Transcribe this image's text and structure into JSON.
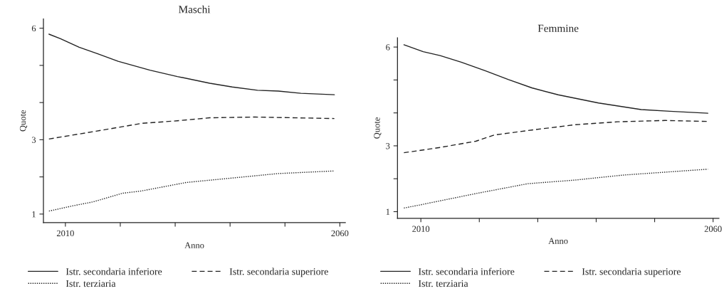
{
  "chart_data": [
    {
      "type": "line",
      "title": "Maschi",
      "xlabel": "Anno",
      "ylabel": "Quote",
      "xlim": [
        2006,
        2061
      ],
      "xticks": [
        2010,
        {
          "value": 2020,
          "label": null
        },
        {
          "value": 2030,
          "label": null
        },
        {
          "value": 2040,
          "label": null
        },
        {
          "value": 2050,
          "label": null
        },
        2060
      ],
      "ylim": [
        0.77,
        6.25
      ],
      "yticks": [
        1,
        {
          "value": 2,
          "label": null
        },
        3,
        {
          "value": 4,
          "label": null
        },
        {
          "value": 5,
          "label": null
        },
        6
      ],
      "grid": false,
      "legend": "bottom",
      "series": [
        {
          "name": "Istr. secondaria inferiore",
          "color": "#222222",
          "line_style": "solid",
          "x": [
            2007,
            2009.1,
            2012.5,
            2015.9,
            2019.6,
            2025.4,
            2030.4,
            2036.3,
            2040.4,
            2045,
            2048.8,
            2052.9,
            2059
          ],
          "values": [
            5.84,
            5.72,
            5.49,
            5.31,
            5.11,
            4.87,
            4.7,
            4.52,
            4.42,
            4.33,
            4.31,
            4.25,
            4.21
          ]
        },
        {
          "name": "Istr. secondaria superiore",
          "color": "#222222",
          "line_style": "dashed",
          "x": [
            2007,
            2015.6,
            2023.9,
            2030.4,
            2036.3,
            2044.6,
            2059
          ],
          "values": [
            3.02,
            3.23,
            3.44,
            3.51,
            3.59,
            3.61,
            3.57
          ]
        },
        {
          "name": "Istr. terziaria",
          "color": "#222222",
          "line_style": "dotted",
          "x": [
            2007,
            2011.3,
            2015.1,
            2020.4,
            2023.8,
            2032,
            2040.4,
            2048.8,
            2059
          ],
          "values": [
            1.08,
            1.22,
            1.33,
            1.56,
            1.62,
            1.85,
            1.97,
            2.09,
            2.16
          ]
        }
      ]
    },
    {
      "type": "line",
      "title": "Femmine",
      "xlabel": "Anno",
      "ylabel": "Quote",
      "xlim": [
        2006,
        2061
      ],
      "xticks": [
        2010,
        {
          "value": 2020,
          "label": null
        },
        {
          "value": 2030,
          "label": null
        },
        {
          "value": 2040,
          "label": null
        },
        {
          "value": 2050,
          "label": null
        },
        2060
      ],
      "ylim": [
        0.8,
        6.28
      ],
      "yticks": [
        1,
        {
          "value": 2,
          "label": null
        },
        3,
        {
          "value": 4,
          "label": null
        },
        {
          "value": 5,
          "label": null
        },
        6
      ],
      "grid": false,
      "legend": "bottom",
      "series": [
        {
          "name": "Istr. secondaria inferiore",
          "color": "#222222",
          "line_style": "solid",
          "x": [
            2007.1,
            2010.4,
            2013.3,
            2016.9,
            2021,
            2025,
            2029,
            2033.5,
            2040.4,
            2047.7,
            2052.6,
            2059.1
          ],
          "values": [
            6.07,
            5.86,
            5.74,
            5.54,
            5.28,
            5.01,
            4.76,
            4.55,
            4.3,
            4.1,
            4.05,
            3.99
          ]
        },
        {
          "name": "Istr. secondaria superiore",
          "color": "#222222",
          "line_style": "dashed",
          "x": [
            2007.1,
            2013.3,
            2019.4,
            2022.6,
            2029,
            2036.4,
            2043.7,
            2051.8,
            2059.1
          ],
          "values": [
            2.79,
            2.95,
            3.14,
            3.33,
            3.48,
            3.64,
            3.73,
            3.77,
            3.74
          ]
        },
        {
          "name": "Istr. terziaria",
          "color": "#222222",
          "line_style": "dotted",
          "x": [
            2007.1,
            2010,
            2019.4,
            2028.3,
            2036.4,
            2044.5,
            2052.6,
            2059.1
          ],
          "values": [
            1.11,
            1.21,
            1.55,
            1.85,
            1.96,
            2.11,
            2.21,
            2.29
          ]
        }
      ]
    }
  ]
}
